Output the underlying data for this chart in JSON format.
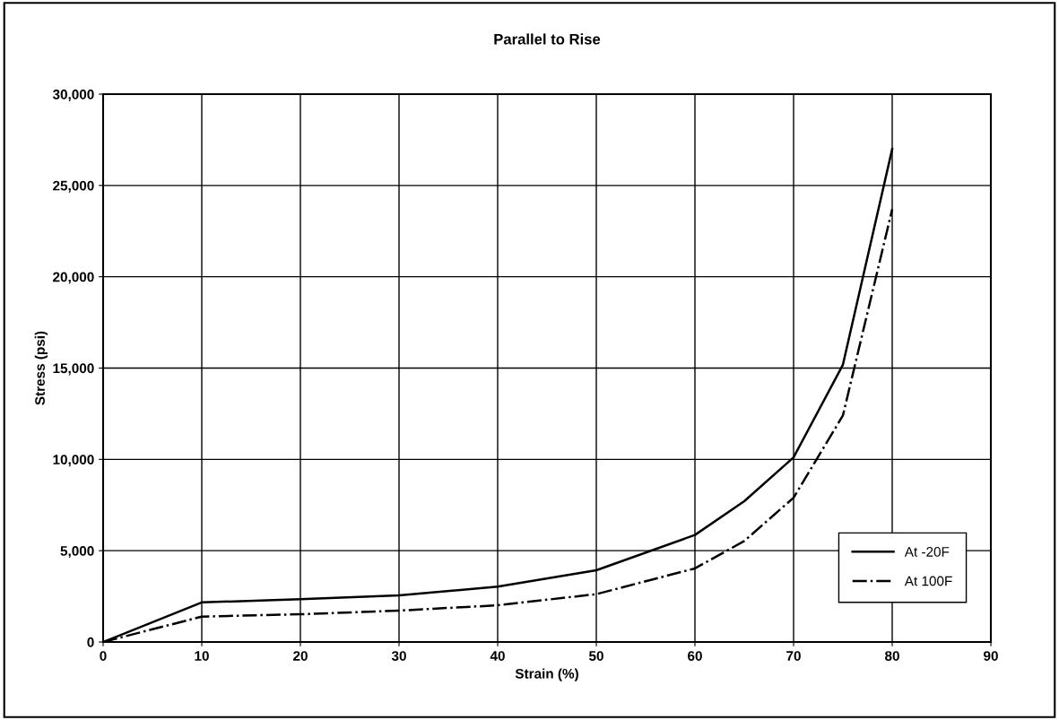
{
  "chart_data": {
    "type": "line",
    "title": "Parallel to Rise",
    "xlabel": "Strain (%)",
    "ylabel": "Stress (psi)",
    "x": [
      0,
      10,
      20,
      30,
      40,
      50,
      60,
      65,
      70,
      75,
      80
    ],
    "series": [
      {
        "name": "At -20F",
        "color": "#000000",
        "line_style": "solid",
        "values": [
          0,
          2170,
          2340,
          2550,
          3030,
          3930,
          5860,
          7710,
          10110,
          15180,
          27000
        ]
      },
      {
        "name": "At 100F",
        "color": "#000000",
        "line_style": "dashdot",
        "values": [
          0,
          1390,
          1520,
          1720,
          2010,
          2620,
          4030,
          5530,
          7900,
          12400,
          23700
        ]
      }
    ],
    "xlim": [
      0,
      90
    ],
    "xticks": [
      0,
      10,
      20,
      30,
      40,
      50,
      60,
      70,
      80,
      90
    ],
    "ylim": [
      0,
      30000
    ],
    "yticks": [
      {
        "value": 0,
        "label": "0"
      },
      {
        "value": 5000,
        "label": "5,000"
      },
      {
        "value": 10000,
        "label": "10,000"
      },
      {
        "value": 15000,
        "label": "15,000"
      },
      {
        "value": 20000,
        "label": "20,000"
      },
      {
        "value": 25000,
        "label": "25,000"
      },
      {
        "value": 30000,
        "label": "30,000"
      }
    ],
    "grid": true,
    "legend": "lower right",
    "marker": "none"
  }
}
